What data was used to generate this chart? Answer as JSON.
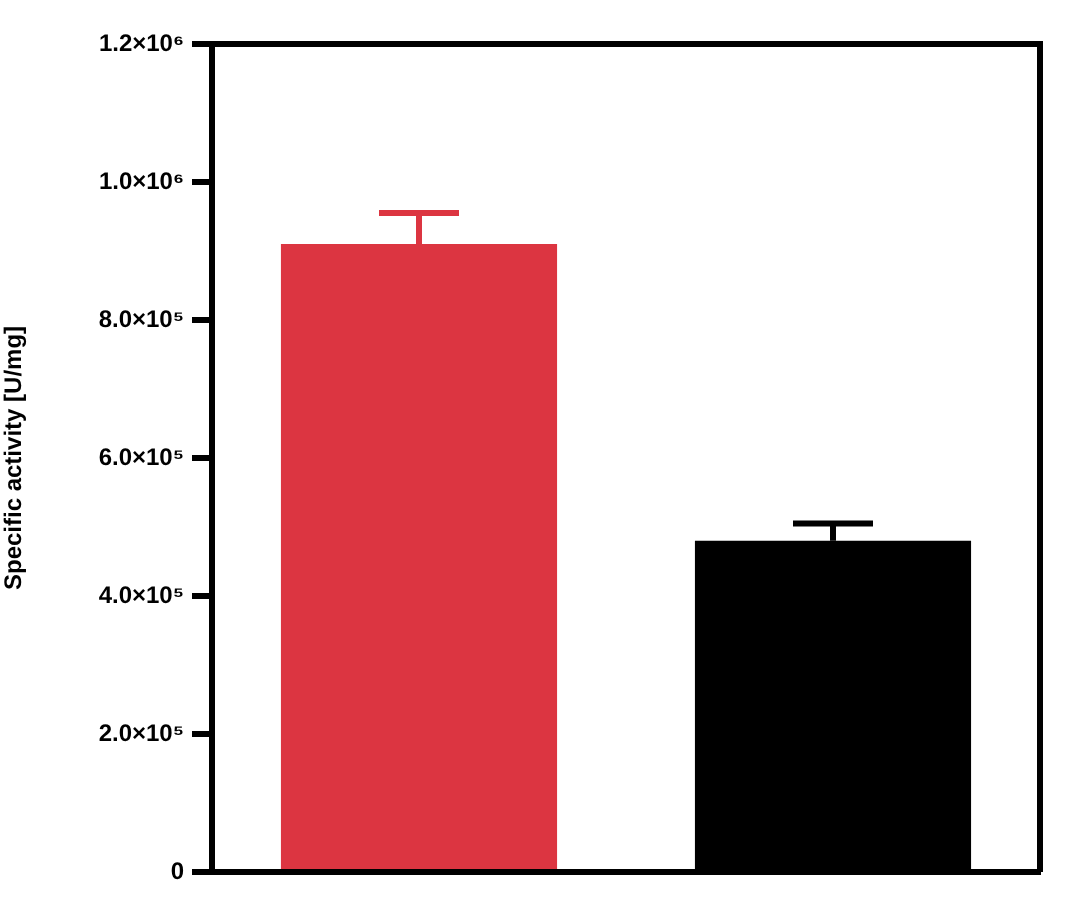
{
  "chart_data": {
    "type": "bar",
    "ylabel": "Specific activity [U/mg]",
    "categories": [
      null,
      null
    ],
    "values": [
      910000,
      480000
    ],
    "colors": [
      "#dc3541",
      "#000000"
    ],
    "errors": [
      [
        910000,
        955000
      ],
      [
        480000,
        505000
      ]
    ],
    "ylim": [
      0,
      1200000
    ],
    "yticks": [
      0,
      {
        "value": 200000,
        "label": "2.0×10⁵"
      },
      {
        "value": 400000,
        "label": "4.0×10⁵"
      },
      {
        "value": 600000,
        "label": "6.0×10⁵"
      },
      {
        "value": 800000,
        "label": "8.0×10⁵"
      },
      {
        "value": 1000000,
        "label": "1.0×10⁶"
      },
      {
        "value": 1200000,
        "label": "1.2×10⁶"
      }
    ]
  }
}
